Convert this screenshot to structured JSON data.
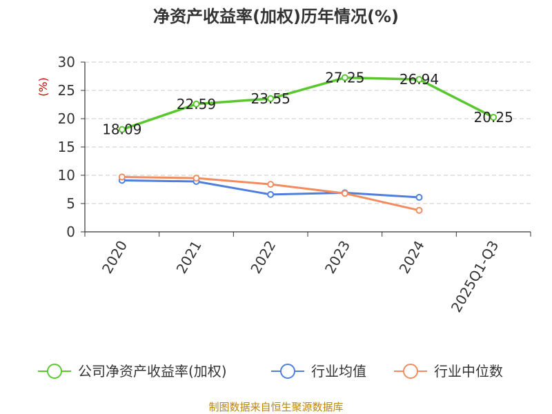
{
  "chart_data": {
    "type": "line",
    "title": "净资产收益率(加权)历年情况(%)",
    "ylabel": "(%)",
    "categories": [
      "2020",
      "2021",
      "2022",
      "2023",
      "2024",
      "2025Q1-Q3"
    ],
    "ylim": [
      0,
      30
    ],
    "yticks": [
      0,
      5,
      10,
      15,
      20,
      25,
      30
    ],
    "grid": true,
    "legend_position": "bottom",
    "series": [
      {
        "name": "公司净资产收益率(加权)",
        "color": "#5ac72e",
        "values": [
          18.09,
          22.59,
          23.55,
          27.25,
          26.94,
          20.25
        ],
        "labels": [
          "18.09",
          "22.59",
          "23.55",
          "27.25",
          "26.94",
          "20.25"
        ]
      },
      {
        "name": "行业均值",
        "color": "#4f7fdc",
        "values": [
          9.1,
          8.9,
          6.6,
          6.9,
          6.1,
          null
        ]
      },
      {
        "name": "行业中位数",
        "color": "#f28c5e",
        "values": [
          9.7,
          9.5,
          8.4,
          6.8,
          3.8,
          null
        ]
      }
    ],
    "source": "制图数据来自恒生聚源数据库"
  }
}
